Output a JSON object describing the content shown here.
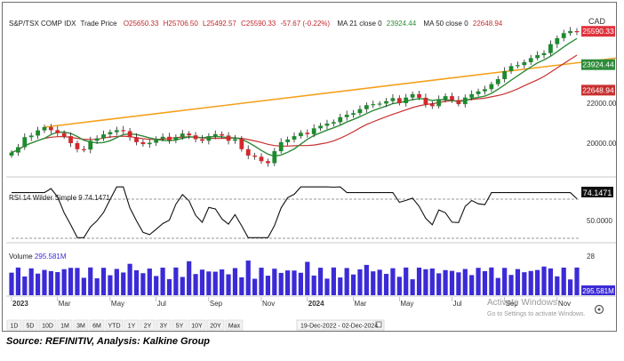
{
  "header": {
    "symbol": "S&P/TSX COMP IDX",
    "series_label": "Trade Price",
    "open": "O25650.33",
    "high": "H25706.50",
    "low": "L25492.57",
    "close": "C25590.33",
    "change": "-57.67 (-0.22%)",
    "ma21_label": "MA 21 close 0",
    "ma21_value": "23924.44",
    "ma50_label": "MA 50 close 0",
    "ma50_value": "22648.94",
    "currency": "CAD"
  },
  "price_axis": {
    "ticks": [
      {
        "value": 22000,
        "label": "22000.00"
      },
      {
        "value": 20000,
        "label": "20000.00"
      }
    ],
    "markers": [
      {
        "value": 25590.33,
        "label": "25590.33",
        "color": "#e0323c"
      },
      {
        "value": 23924.44,
        "label": "23924.44",
        "color": "#2e8b3a"
      },
      {
        "value": 22648.94,
        "label": "22648.94",
        "color": "#c83030"
      }
    ]
  },
  "rsi": {
    "label": "RSI 14 Wilder Simple 9",
    "value_text": "74.1471",
    "axis_label": "50.0000",
    "ylim": [
      10,
      95
    ]
  },
  "volume": {
    "label": "Volume",
    "value_text": "295.581M",
    "axis_top": "28",
    "axis_marker": "295.581M",
    "color": "#3b2bd6"
  },
  "x_axis": {
    "labels": [
      "2023",
      "Mar",
      "May",
      "Jul",
      "Sep",
      "Nov",
      "2024",
      "Mar",
      "May",
      "Jul",
      "Sep",
      "Nov"
    ]
  },
  "toolbar": {
    "ranges": [
      "1D",
      "5D",
      "10D",
      "1M",
      "3M",
      "6M",
      "YTD",
      "1Y",
      "2Y",
      "3Y",
      "5Y",
      "10Y",
      "20Y",
      "Max"
    ],
    "date_range": "19-Dec-2022 - 02-Dec-2024"
  },
  "watermark": {
    "line1": "Activate Windows",
    "line2": "Go to Settings to activate Windows."
  },
  "source": "Source: REFINITIV, Analysis: Kalkine Group",
  "colors": {
    "up": "#1e8a2e",
    "down": "#d4282c",
    "ma21": "#2e8b3a",
    "ma50": "#c83030",
    "trendline": "#f5a01a",
    "rsi": "#111111",
    "volume": "#3b2bd6"
  },
  "chart_data": {
    "type": "candlestick",
    "interval": "weekly",
    "date_range": "19-Dec-2022 - 02-Dec-2024",
    "y_label": "CAD",
    "ylim": [
      18400,
      26400
    ],
    "close_series": [
      19530,
      19800,
      20300,
      20380,
      20640,
      20800,
      20650,
      20500,
      20350,
      20000,
      19700,
      19680,
      20120,
      20240,
      20440,
      20550,
      20650,
      20600,
      20300,
      20050,
      19950,
      20020,
      20220,
      20320,
      20150,
      20300,
      20480,
      20390,
      20200,
      20120,
      20350,
      20450,
      20380,
      20120,
      20200,
      19700,
      19380,
      19320,
      19100,
      19000,
      19600,
      20050,
      20180,
      20350,
      20520,
      20450,
      20740,
      20870,
      20980,
      21050,
      21300,
      21420,
      21500,
      21700,
      21900,
      21950,
      21980,
      22100,
      22250,
      22000,
      22280,
      22450,
      22270,
      21950,
      21850,
      22200,
      22350,
      22150,
      21950,
      22280,
      22450,
      22590,
      22700,
      22950,
      23200,
      23600,
      23850,
      23900,
      24050,
      24250,
      24400,
      24500,
      24950,
      25250,
      25500,
      25600,
      25590
    ],
    "annotations": {
      "last_close": 25590.33,
      "ma21": 23924.44,
      "ma50": 22648.94,
      "trendline": "rising orange trendline from early 2023 (≈20800) to late 2024 (≈24200)"
    },
    "series": [
      {
        "name": "MA 21 close 0",
        "last": 23924.44
      },
      {
        "name": "MA 50 close 0",
        "last": 22648.94
      }
    ],
    "rsi_last": 74.1471,
    "volume_last": "295.581M"
  }
}
